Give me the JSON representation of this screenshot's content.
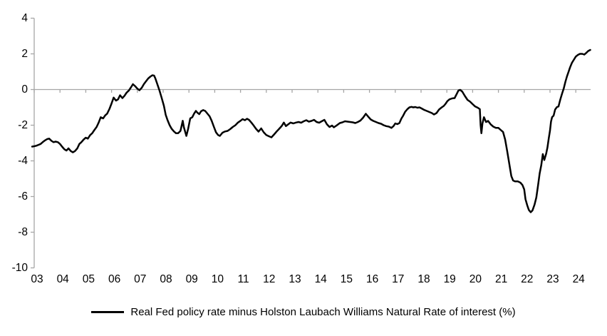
{
  "legend": {
    "label": "Real Fed policy rate minus Holston Laubach Williams Natural Rate of interest (%)"
  },
  "chart_data": {
    "type": "line",
    "title": "",
    "xlabel": "",
    "ylabel": "",
    "background": "#ffffff",
    "axis_color": "#a6a6a6",
    "line_color": "#000000",
    "grid": "zero-line-only",
    "legend_position": "bottom-center",
    "y_axis": {
      "ticks": [
        4,
        2,
        0,
        -2,
        -4,
        -6,
        -8,
        -10
      ],
      "range": [
        -10,
        4
      ]
    },
    "x_axis": {
      "tick_labels": [
        "03",
        "04",
        "05",
        "06",
        "07",
        "08",
        "09",
        "10",
        "11",
        "12",
        "13",
        "14",
        "15",
        "16",
        "17",
        "18",
        "19",
        "20",
        "21",
        "22",
        "23",
        "24"
      ],
      "tick_years": [
        2003,
        2004,
        2005,
        2006,
        2007,
        2008,
        2009,
        2010,
        2011,
        2012,
        2013,
        2014,
        2015,
        2016,
        2017,
        2018,
        2019,
        2020,
        2021,
        2022,
        2023,
        2024
      ],
      "range": [
        2002.92,
        2024.6
      ]
    },
    "series": [
      {
        "name": "Real Fed policy rate minus Holston Laubach Williams Natural Rate of interest (%)",
        "color": "#000000",
        "points": [
          [
            2002.92,
            -3.2
          ],
          [
            2003.0,
            -3.18
          ],
          [
            2003.08,
            -3.15
          ],
          [
            2003.17,
            -3.1
          ],
          [
            2003.25,
            -3.05
          ],
          [
            2003.33,
            -2.95
          ],
          [
            2003.42,
            -2.85
          ],
          [
            2003.5,
            -2.78
          ],
          [
            2003.58,
            -2.75
          ],
          [
            2003.67,
            -2.88
          ],
          [
            2003.75,
            -2.95
          ],
          [
            2003.83,
            -2.92
          ],
          [
            2003.92,
            -2.95
          ],
          [
            2004.0,
            -3.05
          ],
          [
            2004.08,
            -3.2
          ],
          [
            2004.17,
            -3.35
          ],
          [
            2004.25,
            -3.42
          ],
          [
            2004.33,
            -3.3
          ],
          [
            2004.42,
            -3.45
          ],
          [
            2004.5,
            -3.52
          ],
          [
            2004.58,
            -3.45
          ],
          [
            2004.67,
            -3.3
          ],
          [
            2004.75,
            -3.05
          ],
          [
            2004.83,
            -2.95
          ],
          [
            2004.92,
            -2.8
          ],
          [
            2005.0,
            -2.7
          ],
          [
            2005.08,
            -2.75
          ],
          [
            2005.17,
            -2.55
          ],
          [
            2005.25,
            -2.45
          ],
          [
            2005.33,
            -2.28
          ],
          [
            2005.42,
            -2.1
          ],
          [
            2005.5,
            -1.85
          ],
          [
            2005.58,
            -1.55
          ],
          [
            2005.67,
            -1.62
          ],
          [
            2005.75,
            -1.45
          ],
          [
            2005.83,
            -1.35
          ],
          [
            2005.92,
            -1.08
          ],
          [
            2006.0,
            -0.78
          ],
          [
            2006.08,
            -0.45
          ],
          [
            2006.17,
            -0.62
          ],
          [
            2006.25,
            -0.55
          ],
          [
            2006.33,
            -0.32
          ],
          [
            2006.42,
            -0.48
          ],
          [
            2006.5,
            -0.35
          ],
          [
            2006.58,
            -0.18
          ],
          [
            2006.67,
            -0.05
          ],
          [
            2006.75,
            0.12
          ],
          [
            2006.83,
            0.3
          ],
          [
            2006.92,
            0.18
          ],
          [
            2007.0,
            0.05
          ],
          [
            2007.08,
            -0.04
          ],
          [
            2007.17,
            0.1
          ],
          [
            2007.25,
            0.3
          ],
          [
            2007.33,
            0.45
          ],
          [
            2007.42,
            0.62
          ],
          [
            2007.5,
            0.72
          ],
          [
            2007.58,
            0.8
          ],
          [
            2007.65,
            0.78
          ],
          [
            2007.7,
            0.62
          ],
          [
            2007.78,
            0.28
          ],
          [
            2007.86,
            -0.06
          ],
          [
            2007.94,
            -0.45
          ],
          [
            2008.03,
            -0.92
          ],
          [
            2008.1,
            -1.42
          ],
          [
            2008.17,
            -1.72
          ],
          [
            2008.25,
            -2.0
          ],
          [
            2008.33,
            -2.2
          ],
          [
            2008.42,
            -2.35
          ],
          [
            2008.5,
            -2.45
          ],
          [
            2008.58,
            -2.45
          ],
          [
            2008.67,
            -2.32
          ],
          [
            2008.73,
            -1.95
          ],
          [
            2008.76,
            -1.75
          ],
          [
            2008.8,
            -2.1
          ],
          [
            2008.85,
            -2.35
          ],
          [
            2008.9,
            -2.6
          ],
          [
            2008.97,
            -2.2
          ],
          [
            2009.05,
            -1.62
          ],
          [
            2009.13,
            -1.55
          ],
          [
            2009.2,
            -1.35
          ],
          [
            2009.27,
            -1.2
          ],
          [
            2009.33,
            -1.3
          ],
          [
            2009.4,
            -1.38
          ],
          [
            2009.47,
            -1.22
          ],
          [
            2009.55,
            -1.15
          ],
          [
            2009.63,
            -1.2
          ],
          [
            2009.7,
            -1.32
          ],
          [
            2009.8,
            -1.5
          ],
          [
            2009.88,
            -1.75
          ],
          [
            2009.97,
            -2.1
          ],
          [
            2010.05,
            -2.4
          ],
          [
            2010.13,
            -2.55
          ],
          [
            2010.2,
            -2.6
          ],
          [
            2010.3,
            -2.42
          ],
          [
            2010.4,
            -2.35
          ],
          [
            2010.5,
            -2.32
          ],
          [
            2010.6,
            -2.22
          ],
          [
            2010.7,
            -2.1
          ],
          [
            2010.8,
            -2.0
          ],
          [
            2010.9,
            -1.85
          ],
          [
            2011.0,
            -1.75
          ],
          [
            2011.08,
            -1.66
          ],
          [
            2011.17,
            -1.72
          ],
          [
            2011.25,
            -1.64
          ],
          [
            2011.33,
            -1.7
          ],
          [
            2011.42,
            -1.85
          ],
          [
            2011.5,
            -2.0
          ],
          [
            2011.6,
            -2.2
          ],
          [
            2011.7,
            -2.36
          ],
          [
            2011.8,
            -2.18
          ],
          [
            2011.9,
            -2.4
          ],
          [
            2012.0,
            -2.55
          ],
          [
            2012.1,
            -2.62
          ],
          [
            2012.2,
            -2.68
          ],
          [
            2012.3,
            -2.52
          ],
          [
            2012.4,
            -2.35
          ],
          [
            2012.5,
            -2.2
          ],
          [
            2012.6,
            -2.04
          ],
          [
            2012.68,
            -1.85
          ],
          [
            2012.76,
            -2.05
          ],
          [
            2012.85,
            -1.95
          ],
          [
            2012.94,
            -1.85
          ],
          [
            2013.05,
            -1.9
          ],
          [
            2013.15,
            -1.85
          ],
          [
            2013.25,
            -1.82
          ],
          [
            2013.35,
            -1.86
          ],
          [
            2013.45,
            -1.78
          ],
          [
            2013.55,
            -1.72
          ],
          [
            2013.65,
            -1.8
          ],
          [
            2013.75,
            -1.76
          ],
          [
            2013.85,
            -1.7
          ],
          [
            2013.95,
            -1.82
          ],
          [
            2014.05,
            -1.86
          ],
          [
            2014.15,
            -1.78
          ],
          [
            2014.25,
            -1.7
          ],
          [
            2014.35,
            -1.95
          ],
          [
            2014.45,
            -2.1
          ],
          [
            2014.55,
            -2.02
          ],
          [
            2014.62,
            -2.12
          ],
          [
            2014.72,
            -2.02
          ],
          [
            2014.85,
            -1.88
          ],
          [
            2014.95,
            -1.84
          ],
          [
            2015.05,
            -1.78
          ],
          [
            2015.15,
            -1.8
          ],
          [
            2015.25,
            -1.82
          ],
          [
            2015.35,
            -1.84
          ],
          [
            2015.45,
            -1.88
          ],
          [
            2015.55,
            -1.82
          ],
          [
            2015.65,
            -1.74
          ],
          [
            2015.75,
            -1.58
          ],
          [
            2015.86,
            -1.36
          ],
          [
            2015.95,
            -1.52
          ],
          [
            2016.05,
            -1.68
          ],
          [
            2016.15,
            -1.76
          ],
          [
            2016.25,
            -1.82
          ],
          [
            2016.35,
            -1.88
          ],
          [
            2016.45,
            -1.92
          ],
          [
            2016.55,
            -2.0
          ],
          [
            2016.65,
            -2.05
          ],
          [
            2016.75,
            -2.08
          ],
          [
            2016.85,
            -2.15
          ],
          [
            2016.93,
            -2.05
          ],
          [
            2017.0,
            -1.9
          ],
          [
            2017.08,
            -1.94
          ],
          [
            2017.16,
            -1.88
          ],
          [
            2017.24,
            -1.62
          ],
          [
            2017.3,
            -1.48
          ],
          [
            2017.38,
            -1.25
          ],
          [
            2017.47,
            -1.1
          ],
          [
            2017.55,
            -1.0
          ],
          [
            2017.63,
            -0.97
          ],
          [
            2017.7,
            -1.0
          ],
          [
            2017.78,
            -0.98
          ],
          [
            2017.86,
            -1.02
          ],
          [
            2017.94,
            -1.0
          ],
          [
            2018.02,
            -1.06
          ],
          [
            2018.12,
            -1.14
          ],
          [
            2018.22,
            -1.2
          ],
          [
            2018.32,
            -1.26
          ],
          [
            2018.42,
            -1.32
          ],
          [
            2018.5,
            -1.4
          ],
          [
            2018.6,
            -1.32
          ],
          [
            2018.7,
            -1.12
          ],
          [
            2018.8,
            -1.0
          ],
          [
            2018.88,
            -0.92
          ],
          [
            2018.95,
            -0.8
          ],
          [
            2019.02,
            -0.65
          ],
          [
            2019.1,
            -0.55
          ],
          [
            2019.2,
            -0.5
          ],
          [
            2019.3,
            -0.48
          ],
          [
            2019.38,
            -0.25
          ],
          [
            2019.45,
            -0.05
          ],
          [
            2019.52,
            -0.02
          ],
          [
            2019.6,
            -0.12
          ],
          [
            2019.7,
            -0.36
          ],
          [
            2019.8,
            -0.58
          ],
          [
            2019.9,
            -0.68
          ],
          [
            2020.0,
            -0.82
          ],
          [
            2020.1,
            -0.95
          ],
          [
            2020.2,
            -1.02
          ],
          [
            2020.28,
            -1.1
          ],
          [
            2020.31,
            -2.0
          ],
          [
            2020.34,
            -2.45
          ],
          [
            2020.38,
            -1.9
          ],
          [
            2020.44,
            -1.55
          ],
          [
            2020.52,
            -1.82
          ],
          [
            2020.6,
            -1.76
          ],
          [
            2020.7,
            -1.95
          ],
          [
            2020.8,
            -2.08
          ],
          [
            2020.9,
            -2.15
          ],
          [
            2021.0,
            -2.15
          ],
          [
            2021.1,
            -2.28
          ],
          [
            2021.18,
            -2.38
          ],
          [
            2021.26,
            -2.8
          ],
          [
            2021.34,
            -3.45
          ],
          [
            2021.42,
            -4.15
          ],
          [
            2021.5,
            -4.85
          ],
          [
            2021.57,
            -5.1
          ],
          [
            2021.65,
            -5.15
          ],
          [
            2021.75,
            -5.15
          ],
          [
            2021.85,
            -5.22
          ],
          [
            2021.93,
            -5.35
          ],
          [
            2022.0,
            -5.6
          ],
          [
            2022.05,
            -6.15
          ],
          [
            2022.12,
            -6.5
          ],
          [
            2022.18,
            -6.75
          ],
          [
            2022.25,
            -6.88
          ],
          [
            2022.32,
            -6.78
          ],
          [
            2022.4,
            -6.45
          ],
          [
            2022.47,
            -6.05
          ],
          [
            2022.54,
            -5.35
          ],
          [
            2022.6,
            -4.7
          ],
          [
            2022.66,
            -4.25
          ],
          [
            2022.72,
            -3.62
          ],
          [
            2022.78,
            -3.95
          ],
          [
            2022.85,
            -3.6
          ],
          [
            2022.9,
            -3.25
          ],
          [
            2022.95,
            -2.75
          ],
          [
            2023.0,
            -2.3
          ],
          [
            2023.04,
            -1.8
          ],
          [
            2023.08,
            -1.55
          ],
          [
            2023.14,
            -1.46
          ],
          [
            2023.2,
            -1.12
          ],
          [
            2023.27,
            -0.98
          ],
          [
            2023.33,
            -0.95
          ],
          [
            2023.4,
            -0.55
          ],
          [
            2023.47,
            -0.22
          ],
          [
            2023.53,
            0.05
          ],
          [
            2023.6,
            0.45
          ],
          [
            2023.66,
            0.75
          ],
          [
            2023.72,
            1.0
          ],
          [
            2023.78,
            1.25
          ],
          [
            2023.85,
            1.5
          ],
          [
            2023.92,
            1.66
          ],
          [
            2024.0,
            1.85
          ],
          [
            2024.08,
            1.94
          ],
          [
            2024.16,
            2.0
          ],
          [
            2024.25,
            2.0
          ],
          [
            2024.33,
            1.96
          ],
          [
            2024.4,
            2.05
          ],
          [
            2024.48,
            2.16
          ],
          [
            2024.56,
            2.22
          ]
        ]
      }
    ]
  }
}
